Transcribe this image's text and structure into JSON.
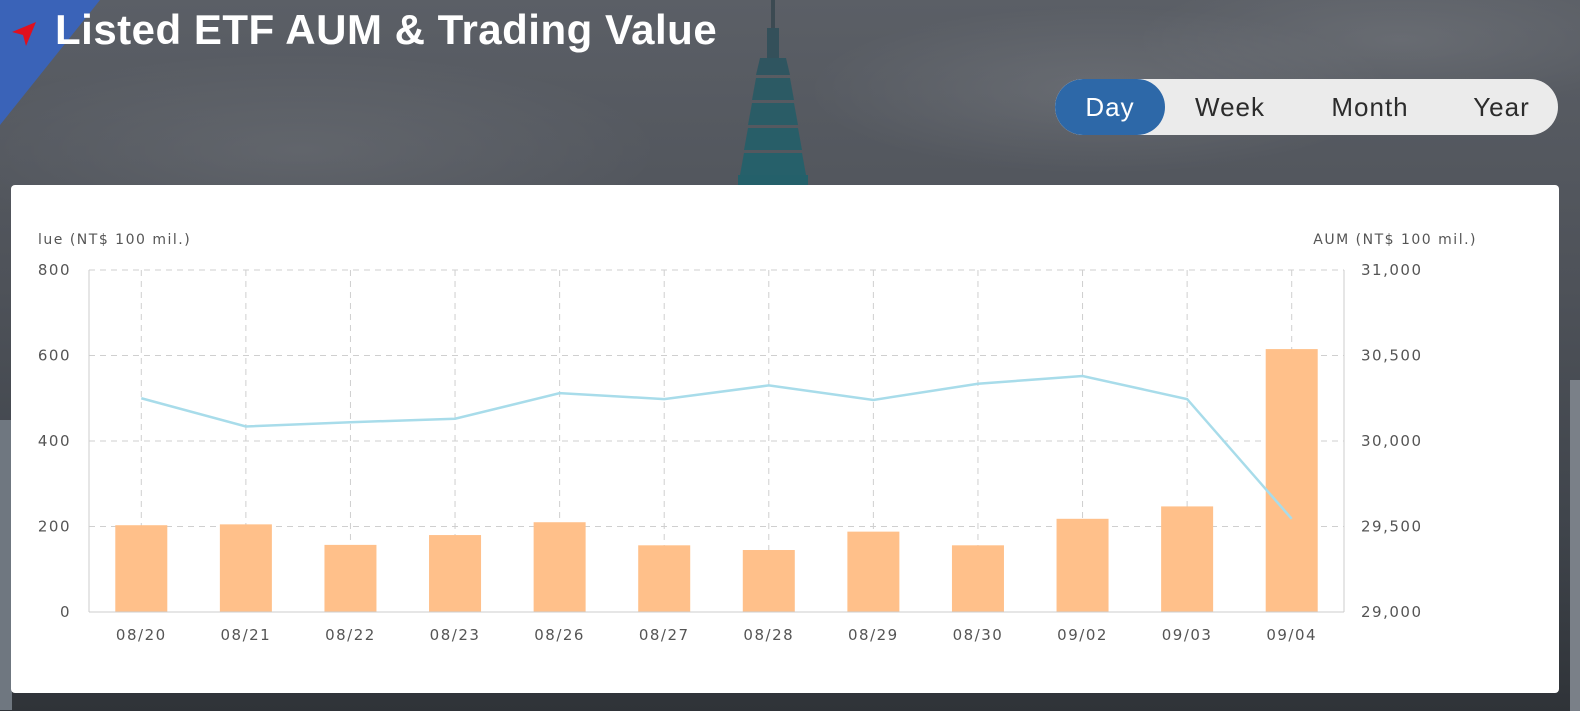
{
  "header": {
    "title": "Listed ETF AUM & Trading Value"
  },
  "period_tabs": [
    {
      "label": "Day",
      "active": true
    },
    {
      "label": "Week",
      "active": false
    },
    {
      "label": "Month",
      "active": false
    },
    {
      "label": "Year",
      "active": false
    }
  ],
  "colors": {
    "accent": "#2d68a8",
    "bar": "#ffc08a",
    "line": "#a8dcea",
    "arrow": "#e0101e"
  },
  "chart_data": {
    "type": "bar+line",
    "categories": [
      "08/20",
      "08/21",
      "08/22",
      "08/23",
      "08/26",
      "08/27",
      "08/28",
      "08/29",
      "08/30",
      "09/02",
      "09/03",
      "09/04"
    ],
    "series": [
      {
        "axis": "left",
        "type": "bar",
        "values": [
          203,
          205,
          157,
          180,
          210,
          156,
          145,
          188,
          156,
          218,
          247,
          615
        ]
      },
      {
        "axis": "right",
        "type": "line",
        "values": [
          30250,
          30085,
          30110,
          30130,
          30280,
          30245,
          30325,
          30240,
          30335,
          30380,
          30245,
          29545
        ]
      }
    ],
    "ylabel_left": "lue (NT$ 100 mil.)",
    "ylabel_right": "AUM (NT$ 100 mil.)",
    "ylim_left": [
      0,
      800
    ],
    "ylim_right": [
      29000,
      31000
    ],
    "yticks_left": [
      "0",
      "200",
      "400",
      "600",
      "800"
    ],
    "yticks_right": [
      "29,000",
      "29,500",
      "30,000",
      "30,500",
      "31,000"
    ],
    "grid": true
  }
}
